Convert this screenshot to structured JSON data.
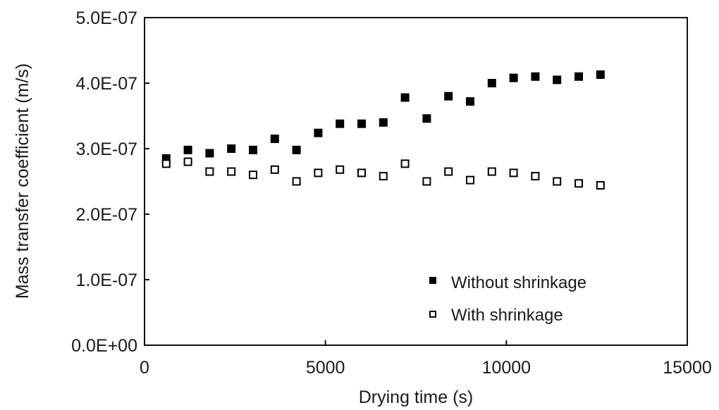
{
  "chart_data": {
    "type": "scatter",
    "title": "",
    "xlabel": "Drying time (s)",
    "ylabel": "Mass transfer coefficient (m/s)",
    "xlim": [
      0,
      15000
    ],
    "ylim": [
      0,
      5e-07
    ],
    "x_ticks": [
      0,
      5000,
      10000,
      15000
    ],
    "x_tick_labels": [
      "0",
      "5000",
      "10000",
      "15000"
    ],
    "y_ticks": [
      0,
      1e-07,
      2e-07,
      3e-07,
      4e-07,
      5e-07
    ],
    "y_tick_labels": [
      "0.0E+00",
      "1.0E-07",
      "2.0E-07",
      "3.0E-07",
      "4.0E-07",
      "5.0E-07"
    ],
    "grid": false,
    "legend_position": "bottom-right",
    "series": [
      {
        "name": "Without shrinkage",
        "marker": "filled-square",
        "color": "#000000",
        "x": [
          600,
          1200,
          1800,
          2400,
          3000,
          3600,
          4200,
          4800,
          5400,
          6000,
          6600,
          7200,
          7800,
          8400,
          9000,
          9600,
          10200,
          10800,
          11400,
          12000,
          12600
        ],
        "y": [
          2.85e-07,
          2.98e-07,
          2.93e-07,
          3e-07,
          2.98e-07,
          3.15e-07,
          2.98e-07,
          3.24e-07,
          3.38e-07,
          3.38e-07,
          3.4e-07,
          3.78e-07,
          3.46e-07,
          3.8e-07,
          3.72e-07,
          4e-07,
          4.08e-07,
          4.1e-07,
          4.05e-07,
          4.1e-07,
          4.13e-07
        ]
      },
      {
        "name": "With shrinkage",
        "marker": "open-square",
        "color": "#000000",
        "x": [
          600,
          1200,
          1800,
          2400,
          3000,
          3600,
          4200,
          4800,
          5400,
          6000,
          6600,
          7200,
          7800,
          8400,
          9000,
          9600,
          10200,
          10800,
          11400,
          12000,
          12600
        ],
        "y": [
          2.77e-07,
          2.8e-07,
          2.65e-07,
          2.65e-07,
          2.6e-07,
          2.68e-07,
          2.5e-07,
          2.63e-07,
          2.68e-07,
          2.63e-07,
          2.58e-07,
          2.77e-07,
          2.5e-07,
          2.65e-07,
          2.52e-07,
          2.65e-07,
          2.63e-07,
          2.58e-07,
          2.5e-07,
          2.47e-07,
          2.44e-07
        ]
      }
    ]
  }
}
